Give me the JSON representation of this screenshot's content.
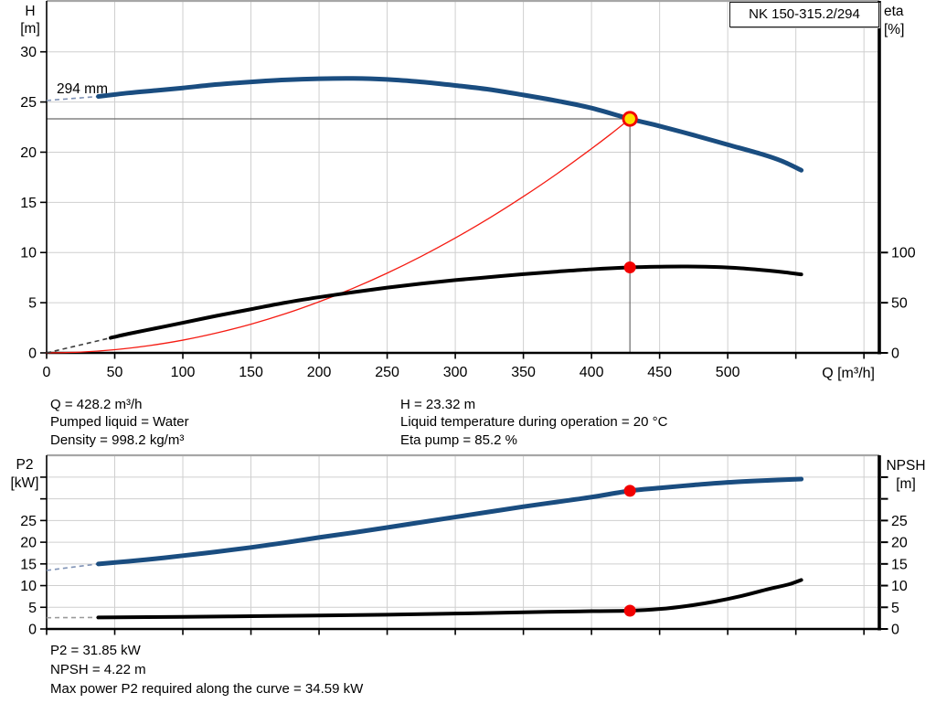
{
  "title_box": "NK 150-315.2/294",
  "colors": {
    "curve_blue": "#1a4d80",
    "curve_black": "#000000",
    "curve_red": "#f51b12",
    "marker_red": "#f20000",
    "marker_yellow": "#ffe000",
    "grid": "#cfcfcf",
    "plot_border_gray": "#a6a6a6",
    "crosshair": "#6a6a6a",
    "lead_blue": "#8093b6",
    "lead_black": "#3c3c3c",
    "lead_gray": "#9a9a9a",
    "axis": "#000000"
  },
  "readouts_top": {
    "left": {
      "q": "Q = 428.2 m³/h",
      "pumped_liquid": "Pumped liquid = Water",
      "density": "Density = 998.2 kg/m³"
    },
    "right": {
      "h": "H = 23.32 m",
      "liquid_temperature": "Liquid temperature during operation = 20 °C",
      "eta_pump": "Eta pump = 85.2 %"
    }
  },
  "readouts_bottom": {
    "p2": "P2 = 31.85 kW",
    "npsh": "NPSH = 4.22 m",
    "max_power": "Max power P2 required along the curve = 34.59 kW"
  },
  "chart_data": [
    {
      "id": "qh-chart",
      "type": "line",
      "title": "NK 150-315.2/294",
      "curve_label": "294 mm",
      "x_axis": {
        "label": "Q [m³/h]",
        "min": 0,
        "max": 611,
        "tick_values": [
          0,
          50,
          100,
          150,
          200,
          250,
          300,
          350,
          400,
          450,
          500,
          550,
          600
        ],
        "tick_labels": [
          "0",
          "50",
          "100",
          "150",
          "200",
          "250",
          "300",
          "350",
          "400",
          "450",
          "500",
          "",
          ""
        ]
      },
      "y_left": {
        "label_lines": [
          "H",
          "[m]"
        ],
        "min": 0,
        "max": 35,
        "tick_values": [
          0,
          5,
          10,
          15,
          20,
          25,
          30
        ],
        "tick_labels": [
          "0",
          "5",
          "10",
          "15",
          "20",
          "25",
          "30"
        ]
      },
      "y_right": {
        "label_lines": [
          "eta",
          "[%]"
        ],
        "min": 0,
        "max": 100,
        "tick_values": [
          0,
          50,
          100
        ],
        "tick_labels": [
          "0",
          "50",
          "100"
        ],
        "right_to_left_factor": 0.1
      },
      "series": [
        {
          "name": "system-curve",
          "axis": "left",
          "width": 1.3,
          "color_key": "curve_red",
          "points": [
            [
              0,
              0
            ],
            [
              25,
              0.08
            ],
            [
              50,
              0.32
            ],
            [
              75,
              0.72
            ],
            [
              100,
              1.27
            ],
            [
              125,
              1.99
            ],
            [
              150,
              2.86
            ],
            [
              175,
              3.89
            ],
            [
              200,
              5.09
            ],
            [
              225,
              6.44
            ],
            [
              250,
              7.95
            ],
            [
              275,
              9.62
            ],
            [
              300,
              11.45
            ],
            [
              325,
              13.43
            ],
            [
              350,
              15.58
            ],
            [
              375,
              17.88
            ],
            [
              400,
              20.35
            ],
            [
              414,
              21.79
            ],
            [
              428.2,
              23.32
            ]
          ]
        },
        {
          "name": "efficiency-curve",
          "axis": "right",
          "width": 4,
          "color_key": "curve_black",
          "lead_color_key": "lead_black",
          "lead_dash": [
            [
              0,
              0
            ],
            [
              47,
              15
            ]
          ],
          "points": [
            [
              47,
              15
            ],
            [
              60,
              19
            ],
            [
              80,
              24.5
            ],
            [
              100,
              30
            ],
            [
              125,
              37
            ],
            [
              150,
              43.5
            ],
            [
              175,
              50
            ],
            [
              200,
              55.5
            ],
            [
              225,
              60.5
            ],
            [
              250,
              65
            ],
            [
              275,
              69
            ],
            [
              300,
              72.5
            ],
            [
              325,
              75.5
            ],
            [
              350,
              78.5
            ],
            [
              375,
              81
            ],
            [
              400,
              83.3
            ],
            [
              428.2,
              85.2
            ],
            [
              450,
              85.9
            ],
            [
              470,
              86.1
            ],
            [
              490,
              85.6
            ],
            [
              510,
              84.3
            ],
            [
              530,
              82
            ],
            [
              542,
              80.3
            ],
            [
              554,
              78.2
            ]
          ]
        },
        {
          "name": "head-curve",
          "axis": "left",
          "width": 5,
          "color_key": "curve_blue",
          "lead_color_key": "lead_blue",
          "lead_dash": [
            [
              0,
              25.15
            ],
            [
              38,
              25.55
            ]
          ],
          "points": [
            [
              38,
              25.55
            ],
            [
              60,
              25.9
            ],
            [
              80,
              26.15
            ],
            [
              100,
              26.4
            ],
            [
              125,
              26.75
            ],
            [
              150,
              27.0
            ],
            [
              175,
              27.2
            ],
            [
              200,
              27.32
            ],
            [
              225,
              27.35
            ],
            [
              250,
              27.25
            ],
            [
              275,
              27.0
            ],
            [
              300,
              26.65
            ],
            [
              325,
              26.25
            ],
            [
              350,
              25.7
            ],
            [
              375,
              25.1
            ],
            [
              400,
              24.4
            ],
            [
              428.2,
              23.32
            ],
            [
              450,
              22.6
            ],
            [
              475,
              21.7
            ],
            [
              500,
              20.75
            ],
            [
              525,
              19.8
            ],
            [
              540,
              19.1
            ],
            [
              554,
              18.2
            ]
          ]
        }
      ],
      "operating_point": {
        "q": 428.2,
        "h": 23.32,
        "eta": 85.2,
        "crosshair": true
      }
    },
    {
      "id": "power-npsh-chart",
      "type": "line",
      "title": "",
      "x_axis": {
        "label": "",
        "min": 0,
        "max": 611,
        "tick_values": [
          0,
          50,
          100,
          150,
          200,
          250,
          300,
          350,
          400,
          450,
          500,
          550,
          600
        ],
        "tick_labels": [
          "",
          "",
          "",
          "",
          "",
          "",
          "",
          "",
          "",
          "",
          "",
          "",
          ""
        ]
      },
      "y_left": {
        "label_lines": [
          "P2",
          "[kW]"
        ],
        "min": 0,
        "max": 39,
        "tick_values": [
          0,
          5,
          10,
          15,
          20,
          25,
          30,
          35
        ],
        "tick_labels": [
          "0",
          "5",
          "10",
          "15",
          "20",
          "25",
          "",
          ""
        ]
      },
      "y_right": {
        "label_lines": [
          "NPSH",
          "[m]"
        ],
        "min": 0,
        "max": 39,
        "tick_values": [
          0,
          5,
          10,
          15,
          20,
          25,
          30,
          35
        ],
        "tick_labels": [
          "0",
          "5",
          "10",
          "15",
          "20",
          "25",
          "",
          ""
        ],
        "right_to_left_factor": 1
      },
      "series": [
        {
          "name": "p2-curve",
          "axis": "left",
          "width": 5,
          "color_key": "curve_blue",
          "lead_color_key": "lead_blue",
          "lead_dash": [
            [
              0,
              13.5
            ],
            [
              38,
              15.0
            ]
          ],
          "points": [
            [
              38,
              15.0
            ],
            [
              60,
              15.6
            ],
            [
              80,
              16.2
            ],
            [
              100,
              16.9
            ],
            [
              125,
              17.8
            ],
            [
              150,
              18.8
            ],
            [
              175,
              19.9
            ],
            [
              200,
              21.1
            ],
            [
              225,
              22.2
            ],
            [
              250,
              23.4
            ],
            [
              275,
              24.6
            ],
            [
              300,
              25.8
            ],
            [
              325,
              27.0
            ],
            [
              350,
              28.2
            ],
            [
              375,
              29.3
            ],
            [
              400,
              30.4
            ],
            [
              428.2,
              31.85
            ],
            [
              450,
              32.5
            ],
            [
              475,
              33.2
            ],
            [
              500,
              33.8
            ],
            [
              525,
              34.2
            ],
            [
              554,
              34.55
            ]
          ]
        },
        {
          "name": "npsh-curve",
          "axis": "right",
          "width": 4,
          "color_key": "curve_black",
          "lead_color_key": "lead_gray",
          "lead_dash": [
            [
              0,
              2.6
            ],
            [
              38,
              2.65
            ]
          ],
          "points": [
            [
              38,
              2.65
            ],
            [
              100,
              2.8
            ],
            [
              150,
              2.95
            ],
            [
              200,
              3.1
            ],
            [
              250,
              3.3
            ],
            [
              300,
              3.55
            ],
            [
              350,
              3.85
            ],
            [
              400,
              4.1
            ],
            [
              428.2,
              4.22
            ],
            [
              450,
              4.6
            ],
            [
              470,
              5.3
            ],
            [
              490,
              6.3
            ],
            [
              510,
              7.6
            ],
            [
              530,
              9.2
            ],
            [
              545,
              10.3
            ],
            [
              554,
              11.3
            ]
          ]
        }
      ],
      "operating_points": [
        {
          "q": 428.2,
          "value": 31.85,
          "axis": "left",
          "name": "p2-duty-point"
        },
        {
          "q": 428.2,
          "value": 4.22,
          "axis": "right",
          "name": "npsh-duty-point"
        }
      ]
    }
  ]
}
